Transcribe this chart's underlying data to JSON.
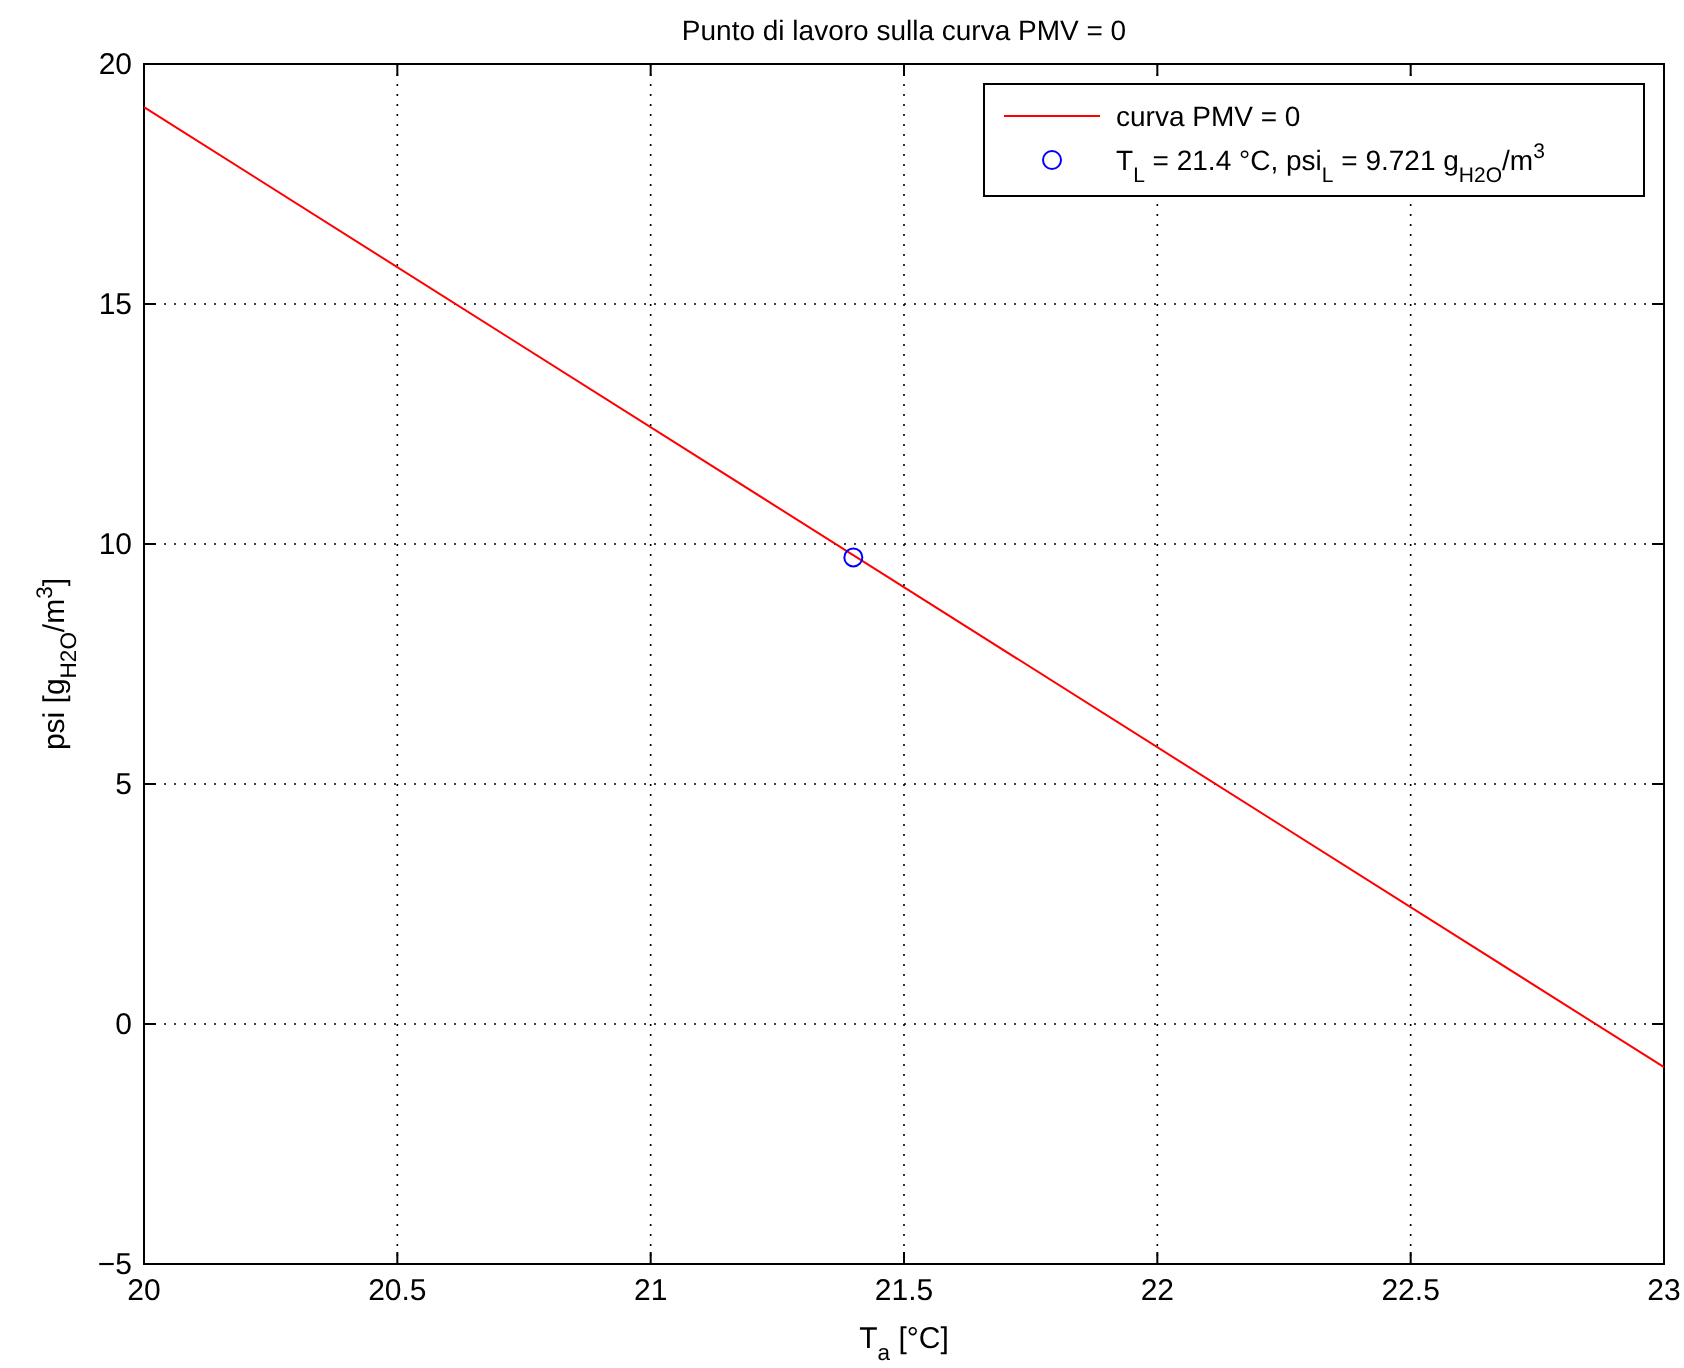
{
  "chart_data": {
    "type": "line",
    "title": "Punto di lavoro sulla curva PMV = 0",
    "xlabel": "T$_{a}$ [°C]",
    "ylabel": "psi [g$_{H2O}$/m$^{3}$]",
    "xlim": [
      20,
      23
    ],
    "xticks": [
      20,
      20.5,
      21,
      21.5,
      22,
      22.5,
      23
    ],
    "ylim": [
      -5,
      20
    ],
    "yticks": [
      -5,
      0,
      5,
      10,
      15,
      20
    ],
    "grid": true,
    "legend": "top right",
    "series": [
      {
        "name": "curva PMV = 0",
        "color": "#ff0000",
        "x": [
          20,
          23
        ],
        "values": [
          19.1,
          -0.9
        ],
        "marker": "none",
        "line_style": "solid"
      },
      {
        "name": "T$_{L}$ = 21.4 °C, psi$_{L}$ = 9.721 g$_{H2O}$/m$^{3}$",
        "type": "scatter",
        "color": "#0000ff",
        "x": [
          21.4
        ],
        "values": [
          9.721
        ],
        "marker": "circle"
      }
    ]
  }
}
